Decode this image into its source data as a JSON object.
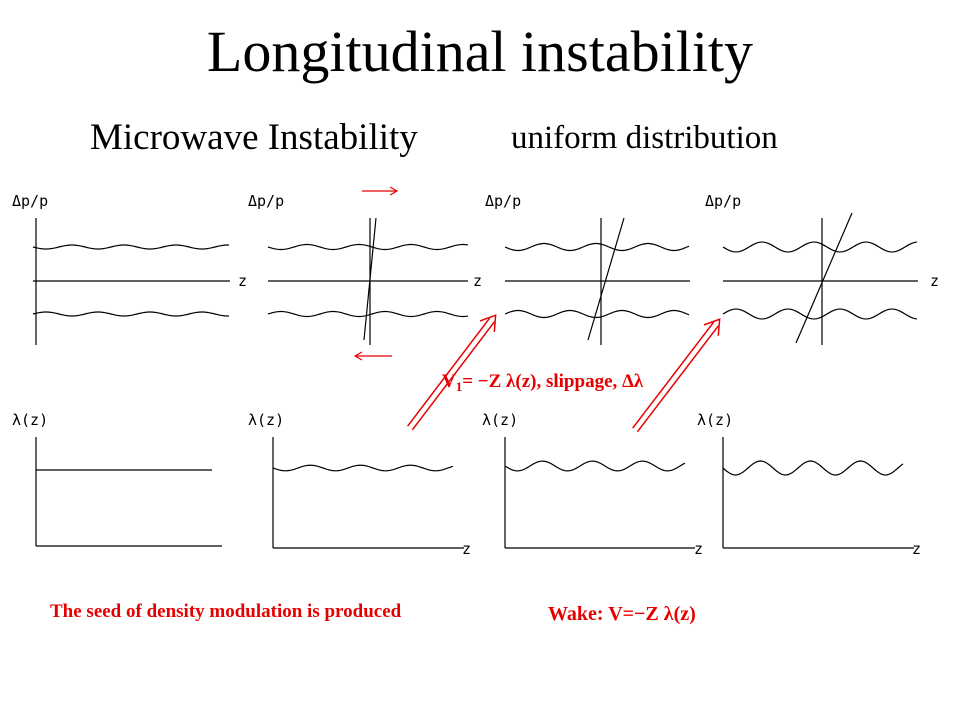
{
  "title": "Longitudinal instability",
  "subtitle": "Microwave Instability",
  "subtitle_detail": "uniform distribution",
  "top_panels": [
    {
      "ylabel": "Δp/p",
      "xlabel": "z"
    },
    {
      "ylabel": "Δp/p",
      "xlabel": "z"
    },
    {
      "ylabel": "Δp/p",
      "xlabel": ""
    },
    {
      "ylabel": "Δp/p",
      "xlabel": "z"
    }
  ],
  "bottom_panels": [
    {
      "ylabel": "λ(z)",
      "xlabel": "",
      "amplitude": 0
    },
    {
      "ylabel": "λ(z)",
      "xlabel": "z",
      "amplitude": 0.2
    },
    {
      "ylabel": "λ(z)",
      "xlabel": "z",
      "amplitude": 0.35
    },
    {
      "ylabel": "λ(z)",
      "xlabel": "z",
      "amplitude": 0.5
    }
  ],
  "wake_annotation": {
    "prefix": "V",
    "subscript": "1",
    "suffix": "= −Z λ(z), slippage, Δλ"
  },
  "caption_left": "The seed of density modulation is  produced",
  "caption_right": "Wake:  V=−Z λ(z)",
  "colors": {
    "annotation": "#e60000",
    "lines": "#000000"
  }
}
